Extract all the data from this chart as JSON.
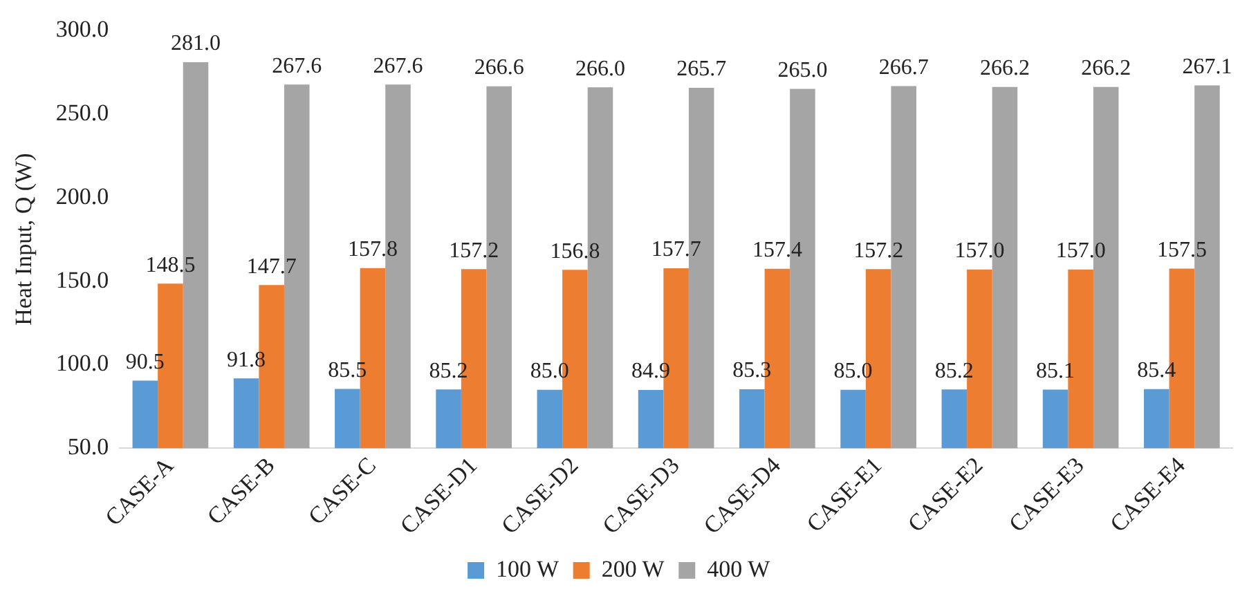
{
  "chart_data": {
    "type": "bar",
    "ylabel": "Heat Input, Q (W)",
    "categories": [
      "CASE-A",
      "CASE-B",
      "CASE-C",
      "CASE-D1",
      "CASE-D2",
      "CASE-D3",
      "CASE-D4",
      "CASE-E1",
      "CASE-E2",
      "CASE-E3",
      "CASE-E4"
    ],
    "series": [
      {
        "name": "100 W",
        "color": "#5b9bd5",
        "values": [
          90.5,
          91.8,
          85.5,
          85.2,
          85.0,
          84.9,
          85.3,
          85.0,
          85.2,
          85.1,
          85.4
        ],
        "value_labels": [
          "90.5",
          "91.8",
          "85.5",
          "85.2",
          "85.0",
          "84.9",
          "85.3",
          "85.0",
          "85.2",
          "85.1",
          "85.4"
        ]
      },
      {
        "name": "200 W",
        "color": "#ed7d31",
        "values": [
          148.5,
          147.7,
          157.8,
          157.2,
          156.8,
          157.7,
          157.4,
          157.2,
          157.0,
          157.0,
          157.5
        ],
        "value_labels": [
          "148.5",
          "147.7",
          "157.8",
          "157.2",
          "156.8",
          "157.7",
          "157.4",
          "157.2",
          "157.0",
          "157.0",
          "157.5"
        ]
      },
      {
        "name": "400 W",
        "color": "#a5a5a5",
        "values": [
          281.0,
          267.6,
          267.6,
          266.6,
          266.0,
          265.7,
          265.0,
          266.7,
          266.2,
          266.2,
          267.1
        ],
        "value_labels": [
          "281.0",
          "267.6",
          "267.6",
          "266.6",
          "266.0",
          "265.7",
          "265.0",
          "266.7",
          "266.2",
          "266.2",
          "267.1"
        ]
      }
    ],
    "ylim": [
      50,
      300
    ],
    "yticks": [
      {
        "value": 50,
        "label": "50.0"
      },
      {
        "value": 100,
        "label": "100.0"
      },
      {
        "value": 150,
        "label": "150.0"
      },
      {
        "value": 200,
        "label": "200.0"
      },
      {
        "value": 250,
        "label": "250.0"
      },
      {
        "value": 300,
        "label": "300.0"
      }
    ],
    "grid": false,
    "legend": "bottom"
  }
}
